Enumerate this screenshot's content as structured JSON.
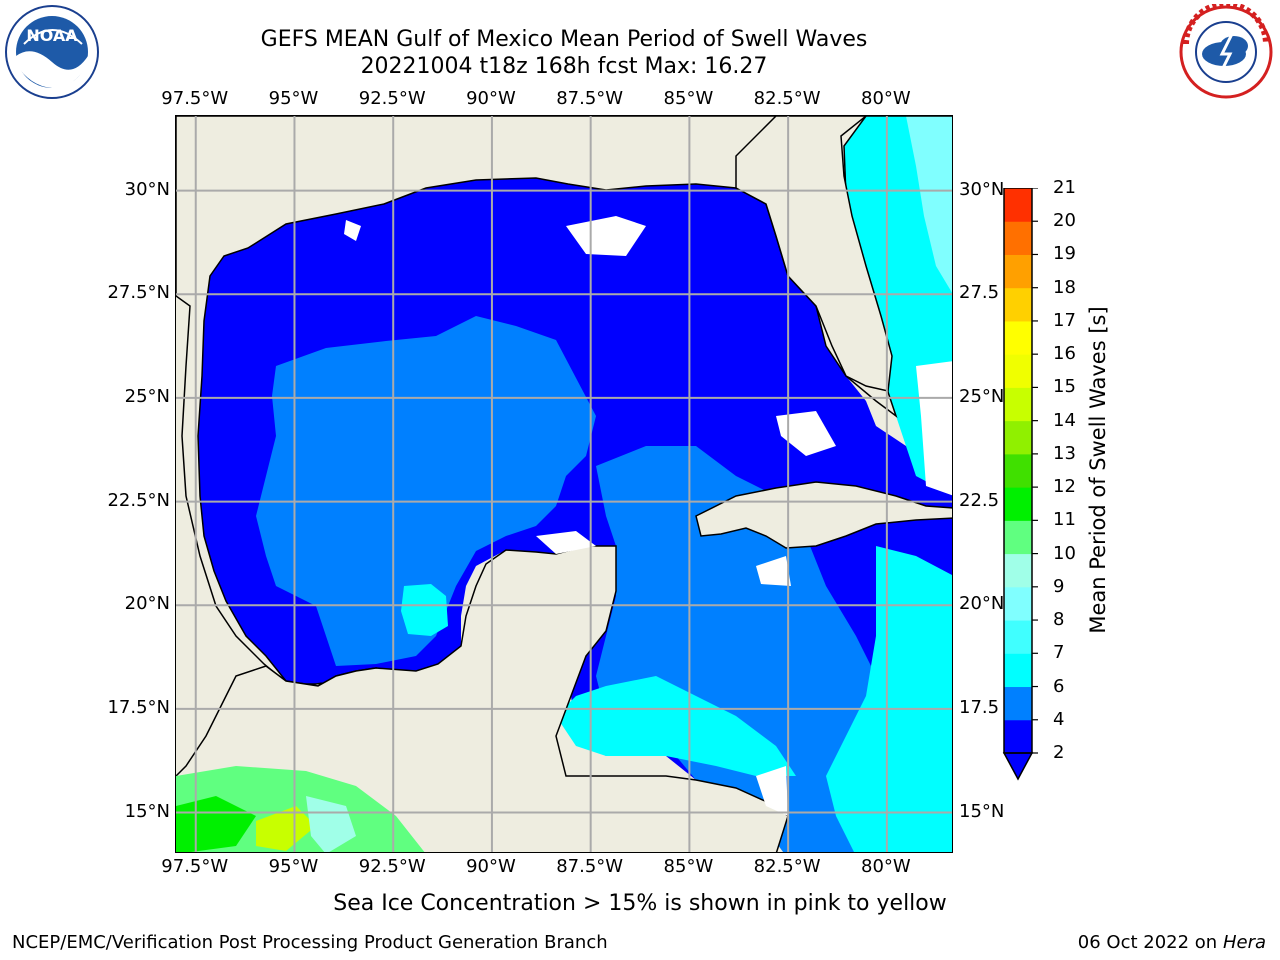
{
  "title": {
    "line1": "GEFS MEAN Gulf of Mexico Mean Period of Swell Waves",
    "line2": "20221004 t18z 168h fcst   Max: 16.27"
  },
  "logos": {
    "left": {
      "text": "NOAA",
      "icon": "noaa-logo"
    },
    "right": {
      "text": "NATIONAL WEATHER SERVICE",
      "icon": "nws-logo"
    }
  },
  "map": {
    "lon_ticks": [
      "97.5°W",
      "95°W",
      "92.5°W",
      "90°W",
      "87.5°W",
      "85°W",
      "82.5°W",
      "80°W"
    ],
    "lon_values": [
      -97.5,
      -95,
      -92.5,
      -90,
      -87.5,
      -85,
      -82.5,
      -80
    ],
    "lat_ticks_left": [
      "30°N",
      "27.5°N",
      "25°N",
      "22.5°N",
      "20°N",
      "17.5°N",
      "15°N"
    ],
    "lat_ticks_right": [
      "30°N",
      "27.5",
      "25°N",
      "22.5",
      "20°N",
      "17.5",
      "15°N"
    ],
    "lat_values": [
      30,
      27.5,
      25,
      22.5,
      20,
      17.5,
      15
    ],
    "lon_range": [
      -98,
      -78.3
    ],
    "lat_range": [
      14,
      31.8
    ],
    "land_color": "#eeede0",
    "grid": true
  },
  "colorbar": {
    "label": "Mean Period of Swell Waves [s]",
    "ticks": [
      "2",
      "4",
      "6",
      "7",
      "8",
      "9",
      "10",
      "11",
      "12",
      "13",
      "14",
      "15",
      "16",
      "17",
      "18",
      "19",
      "20",
      "21"
    ],
    "colors": [
      "#0000ff",
      "#0080ff",
      "#00ffff",
      "#40ffff",
      "#80ffff",
      "#a0ffe8",
      "#60ff80",
      "#00f000",
      "#40e000",
      "#90f000",
      "#c8ff00",
      "#f0ff00",
      "#ffff00",
      "#ffd000",
      "#ffa000",
      "#ff7000",
      "#ff3000",
      "#ff0000"
    ],
    "extend": "min"
  },
  "notes": {
    "ice": "Sea Ice Concentration > 15% is shown in pink to yellow",
    "footer_left": "NCEP/EMC/Verification Post Processing Product Generation Branch",
    "footer_date": "06 Oct 2022 on",
    "footer_machine": "Hera"
  }
}
